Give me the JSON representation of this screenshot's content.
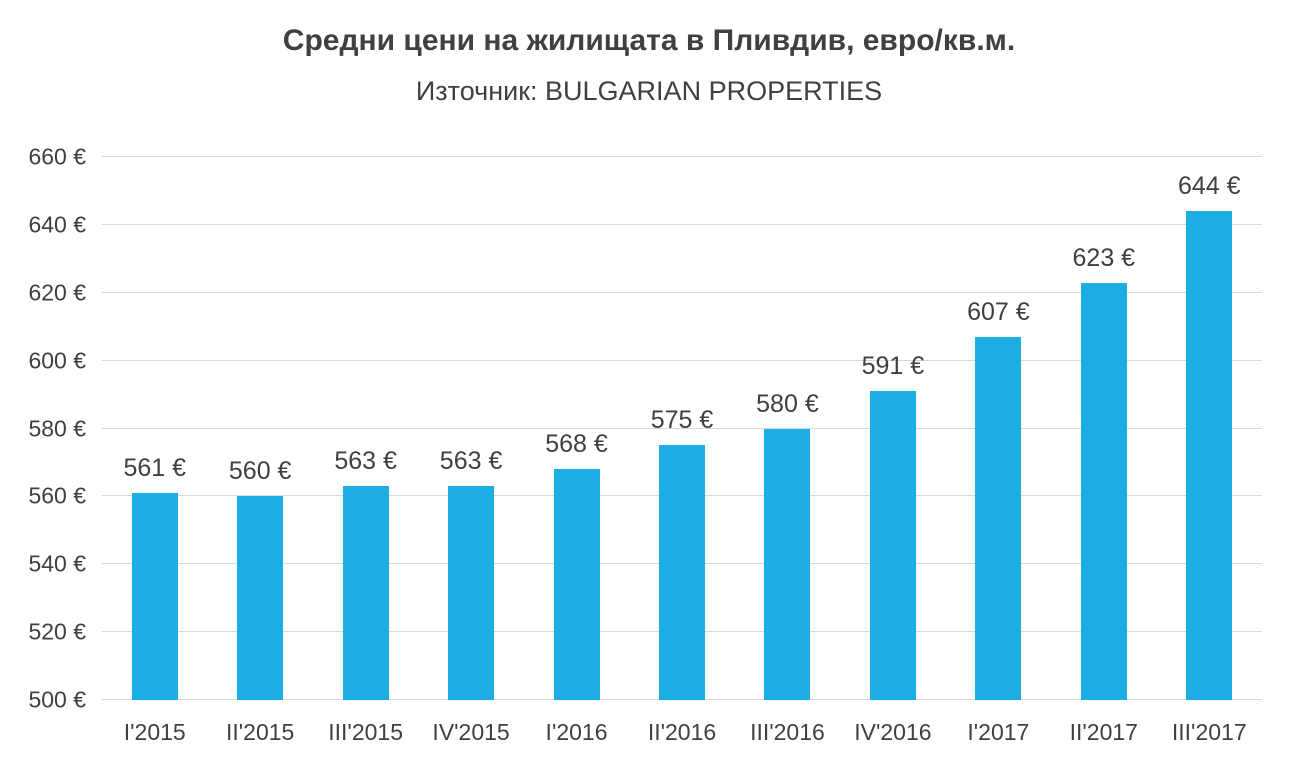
{
  "chart_data": {
    "type": "bar",
    "title": "Средни цени на жилищата в Пливдив, евро/кв.м.",
    "subtitle": "Източник: BULGARIAN PROPERTIES",
    "categories": [
      "I'2015",
      "II'2015",
      "III'2015",
      "IV'2015",
      "I'2016",
      "II'2016",
      "III'2016",
      "IV'2016",
      "I'2017",
      "II'2017",
      "III'2017"
    ],
    "values": [
      561,
      560,
      563,
      563,
      568,
      575,
      580,
      591,
      607,
      623,
      644
    ],
    "value_labels": [
      "561 €",
      "560 €",
      "563 €",
      "563 €",
      "568 €",
      "575 €",
      "580 €",
      "591 €",
      "607 €",
      "623 €",
      "644 €"
    ],
    "xlabel": "",
    "ylabel": "",
    "ylim": [
      500,
      660
    ],
    "yticks": [
      500,
      520,
      540,
      560,
      580,
      600,
      620,
      640,
      660
    ],
    "ytick_labels": [
      "500 €",
      "520 €",
      "540 €",
      "560 €",
      "580 €",
      "600 €",
      "620 €",
      "640 €",
      "660 €"
    ],
    "grid": true,
    "legend": "none",
    "colors": {
      "bar": "#1cade4",
      "gridline": "#d9d9d9",
      "text": "#404040",
      "background": "#ffffff"
    }
  }
}
